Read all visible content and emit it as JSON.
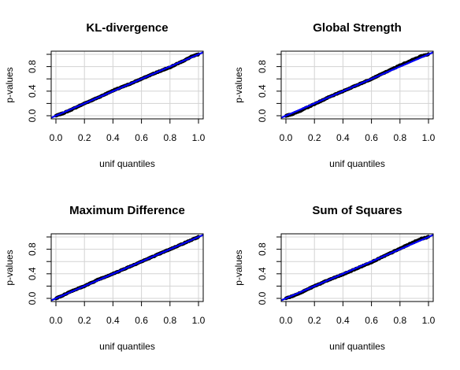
{
  "chart_data": [
    {
      "type": "scatter",
      "title": "KL-divergence",
      "xlabel": "unif quantiles",
      "ylabel": "p-values",
      "xlim": [
        0,
        1
      ],
      "ylim": [
        0,
        1
      ],
      "xticks": [
        "0.0",
        "0.2",
        "0.4",
        "0.6",
        "0.8",
        "1.0"
      ],
      "yticks": [
        "0.0",
        "0.4",
        "0.8"
      ],
      "grid": true,
      "reference_line": {
        "intercept": 0,
        "slope": 1,
        "color": "#0000ff"
      },
      "point_color": "#000000",
      "x": [
        0,
        0.05,
        0.1,
        0.2,
        0.3,
        0.4,
        0.5,
        0.6,
        0.7,
        0.8,
        0.9,
        0.95,
        1.0
      ],
      "y": [
        0,
        0.04,
        0.09,
        0.2,
        0.3,
        0.41,
        0.5,
        0.6,
        0.7,
        0.79,
        0.9,
        0.96,
        1.0
      ]
    },
    {
      "type": "scatter",
      "title": "Global Strength",
      "xlabel": "unif quantiles",
      "ylabel": "p-values",
      "xlim": [
        0,
        1
      ],
      "ylim": [
        0,
        1
      ],
      "xticks": [
        "0.0",
        "0.2",
        "0.4",
        "0.6",
        "0.8",
        "1.0"
      ],
      "yticks": [
        "0.0",
        "0.4",
        "0.8"
      ],
      "grid": true,
      "reference_line": {
        "intercept": 0,
        "slope": 1,
        "color": "#0000ff"
      },
      "point_color": "#000000",
      "x": [
        0,
        0.05,
        0.1,
        0.2,
        0.3,
        0.4,
        0.5,
        0.6,
        0.7,
        0.8,
        0.9,
        0.95,
        1.0
      ],
      "y": [
        0,
        0.03,
        0.08,
        0.19,
        0.3,
        0.4,
        0.5,
        0.6,
        0.71,
        0.82,
        0.92,
        0.97,
        1.0
      ]
    },
    {
      "type": "scatter",
      "title": "Maximum Difference",
      "xlabel": "unif quantiles",
      "ylabel": "p-values",
      "xlim": [
        0,
        1
      ],
      "ylim": [
        0,
        1
      ],
      "xticks": [
        "0.0",
        "0.2",
        "0.4",
        "0.6",
        "0.8",
        "1.0"
      ],
      "yticks": [
        "0.0",
        "0.4",
        "0.8"
      ],
      "grid": true,
      "reference_line": {
        "intercept": 0,
        "slope": 1,
        "color": "#0000ff"
      },
      "point_color": "#000000",
      "x": [
        0,
        0.05,
        0.1,
        0.2,
        0.3,
        0.4,
        0.5,
        0.6,
        0.7,
        0.8,
        0.9,
        0.95,
        1.0
      ],
      "y": [
        0,
        0.05,
        0.11,
        0.2,
        0.31,
        0.4,
        0.5,
        0.6,
        0.7,
        0.8,
        0.9,
        0.95,
        1.0
      ]
    },
    {
      "type": "scatter",
      "title": "Sum of Squares",
      "xlabel": "unif quantiles",
      "ylabel": "p-values",
      "xlim": [
        0,
        1
      ],
      "ylim": [
        0,
        1
      ],
      "xticks": [
        "0.0",
        "0.2",
        "0.4",
        "0.6",
        "0.8",
        "1.0"
      ],
      "yticks": [
        "0.0",
        "0.4",
        "0.8"
      ],
      "grid": true,
      "reference_line": {
        "intercept": 0,
        "slope": 1,
        "color": "#0000ff"
      },
      "point_color": "#000000",
      "x": [
        0,
        0.05,
        0.1,
        0.2,
        0.3,
        0.4,
        0.5,
        0.6,
        0.7,
        0.8,
        0.9,
        0.95,
        1.0
      ],
      "y": [
        0,
        0.04,
        0.09,
        0.2,
        0.3,
        0.39,
        0.49,
        0.59,
        0.7,
        0.81,
        0.92,
        0.97,
        1.0
      ]
    }
  ]
}
